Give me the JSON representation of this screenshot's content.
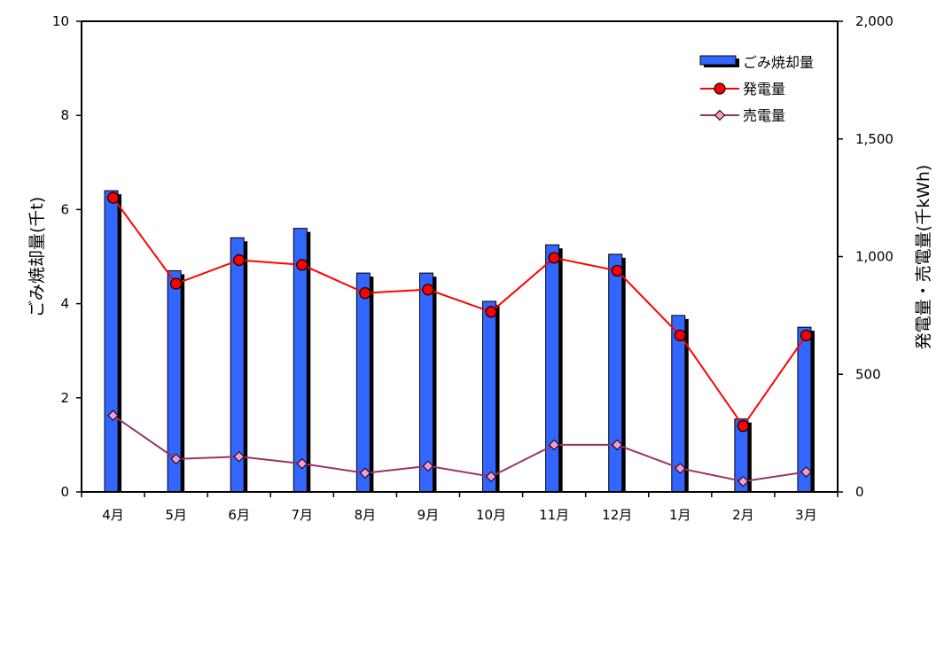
{
  "chart_data": {
    "type": "bar",
    "categories": [
      "4月",
      "5月",
      "6月",
      "7月",
      "8月",
      "9月",
      "10月",
      "11月",
      "12月",
      "1月",
      "2月",
      "3月"
    ],
    "y_left": {
      "label": "ごみ焼却量(千t)",
      "lim": [
        0,
        10
      ],
      "ticks": [
        0,
        2,
        4,
        6,
        8,
        10
      ],
      "tick_labels": [
        "0",
        "2",
        "4",
        "6",
        "8",
        "10"
      ]
    },
    "y_right": {
      "label": "発電量・売電量(千kWh)",
      "lim": [
        0,
        2000
      ],
      "ticks": [
        0,
        500,
        1000,
        1500,
        2000
      ],
      "tick_labels": [
        "0",
        "500",
        "1,000",
        "1,500",
        "2,000"
      ]
    },
    "series": [
      {
        "name": "ごみ焼却量",
        "kind": "bar",
        "axis": "left",
        "color": "#3366ff",
        "values": [
          6.4,
          4.7,
          5.4,
          5.6,
          4.65,
          4.65,
          4.05,
          5.25,
          5.05,
          3.75,
          1.55,
          3.5
        ]
      },
      {
        "name": "発電量",
        "kind": "line",
        "axis": "right",
        "color": "#ff0000",
        "marker": "circle",
        "marker_color": "#ff0000",
        "values": [
          1250,
          885,
          985,
          965,
          845,
          860,
          765,
          995,
          940,
          665,
          280,
          665
        ]
      },
      {
        "name": "売電量",
        "kind": "line",
        "axis": "right",
        "color": "#993366",
        "marker": "diamond",
        "marker_color": "#ff99cc",
        "values": [
          325,
          140,
          150,
          120,
          80,
          110,
          65,
          200,
          200,
          100,
          45,
          85
        ]
      }
    ],
    "grid": false,
    "legend": "top-right"
  }
}
